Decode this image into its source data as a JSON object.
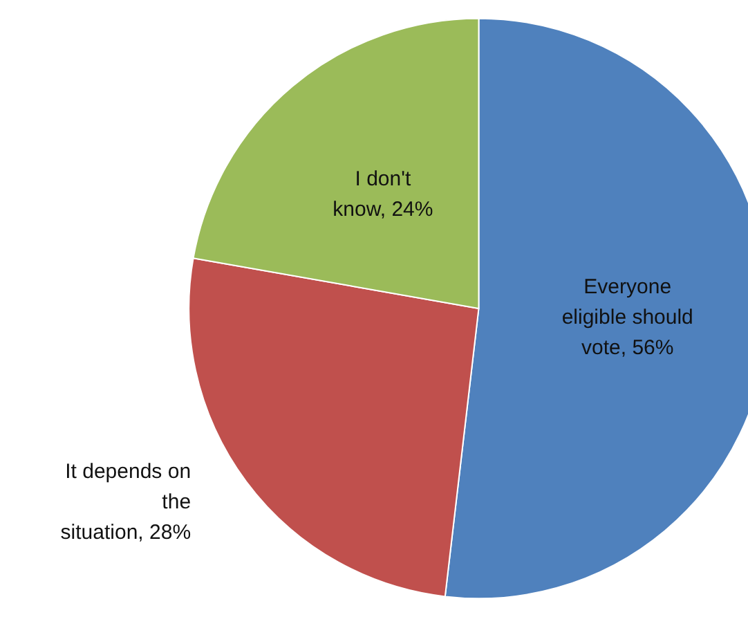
{
  "chart_data": {
    "type": "pie",
    "categories": [
      "Everyone eligible should vote",
      "It depends on the situation",
      "I don't know"
    ],
    "values": [
      56,
      28,
      24
    ],
    "value_labels": [
      "56%",
      "28%",
      "24%"
    ],
    "colors": [
      "#4f81bd",
      "#c0504d",
      "#9bbb59"
    ],
    "legend": false
  }
}
